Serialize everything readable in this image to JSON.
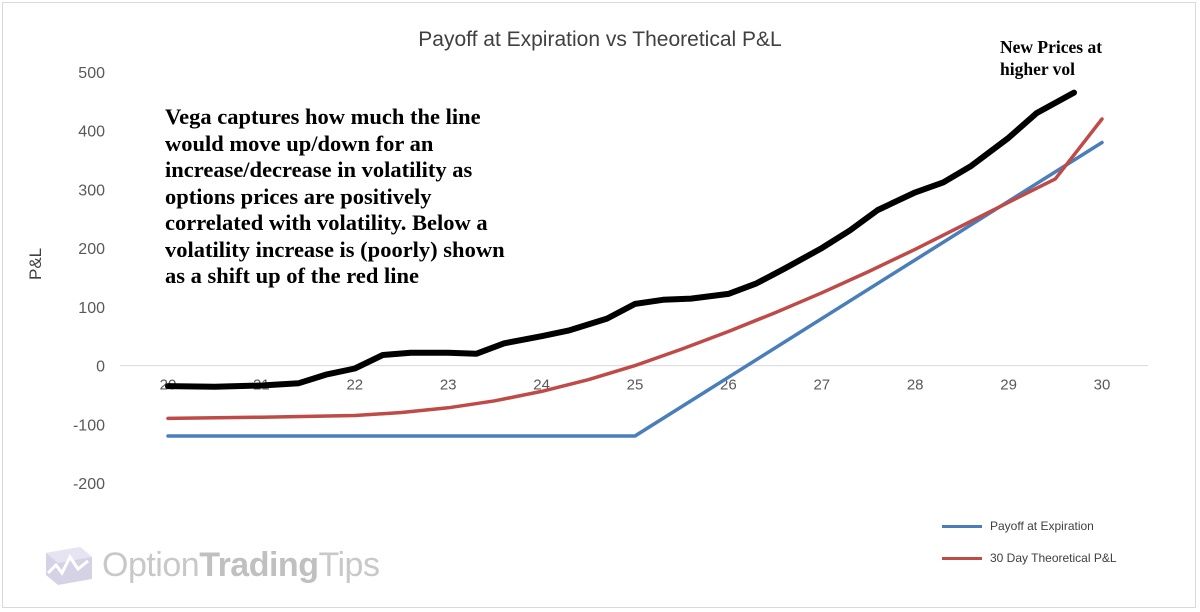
{
  "chart_data": {
    "type": "line",
    "title": "Payoff at Expiration vs Theoretical P&L",
    "xlabel": "",
    "ylabel": "P&L",
    "xlim": [
      20,
      30
    ],
    "ylim": [
      -200,
      500
    ],
    "x_ticks": [
      "20",
      "21",
      "22",
      "23",
      "24",
      "25",
      "26",
      "27",
      "28",
      "29",
      "30"
    ],
    "y_ticks": [
      "500",
      "400",
      "300",
      "200",
      "100",
      "0",
      "-100",
      "-200"
    ],
    "grid": false,
    "legend_position": "bottom-right",
    "series": [
      {
        "name": "Payoff at Expiration",
        "color": "#4a7ebb",
        "x": [
          20,
          25,
          30
        ],
        "y": [
          -120,
          -120,
          380
        ]
      },
      {
        "name": "30 Day Theoretical P&L",
        "color": "#be4b48",
        "x": [
          20,
          21,
          22,
          22.5,
          23,
          23.5,
          24,
          24.5,
          25,
          25.5,
          26,
          26.5,
          27,
          27.5,
          28,
          28.5,
          29,
          29.5,
          30
        ],
        "y": [
          -90,
          -88,
          -85,
          -80,
          -72,
          -60,
          -44,
          -24,
          0,
          28,
          58,
          90,
          124,
          160,
          198,
          238,
          278,
          318,
          420
        ]
      },
      {
        "name": "",
        "color": "#000000",
        "x": [
          20,
          20.5,
          21,
          21.4,
          21.7,
          22,
          22.3,
          22.6,
          23,
          23.3,
          23.6,
          24,
          24.3,
          24.7,
          25,
          25.3,
          25.6,
          26,
          26.3,
          26.6,
          27,
          27.3,
          27.6,
          28,
          28.3,
          28.6,
          29,
          29.3,
          29.7
        ],
        "y": [
          -35,
          -36,
          -34,
          -30,
          -15,
          -5,
          18,
          22,
          22,
          20,
          38,
          50,
          60,
          80,
          105,
          112,
          114,
          122,
          140,
          165,
          200,
          230,
          265,
          295,
          312,
          340,
          388,
          430,
          465
        ]
      }
    ]
  },
  "callout": {
    "lines": [
      "Vega captures how much the line",
      "would move up/down for an",
      "increase/decrease in volatility as",
      "options prices are positively",
      "correlated with volatility. Below a",
      "volatility increase is (poorly) shown",
      "as a shift up of the red line"
    ]
  },
  "note": {
    "lines": [
      "New Prices at",
      "higher vol"
    ]
  },
  "legend": {
    "items": [
      {
        "label": "Payoff at Expiration",
        "color": "#4a7ebb"
      },
      {
        "label": "30 Day Theoretical P&L",
        "color": "#be4b48"
      }
    ]
  },
  "logo": {
    "text_regular": "Option",
    "text_bold": "Trading",
    "text_end": "Tips",
    "color": "#c8c8c8"
  }
}
